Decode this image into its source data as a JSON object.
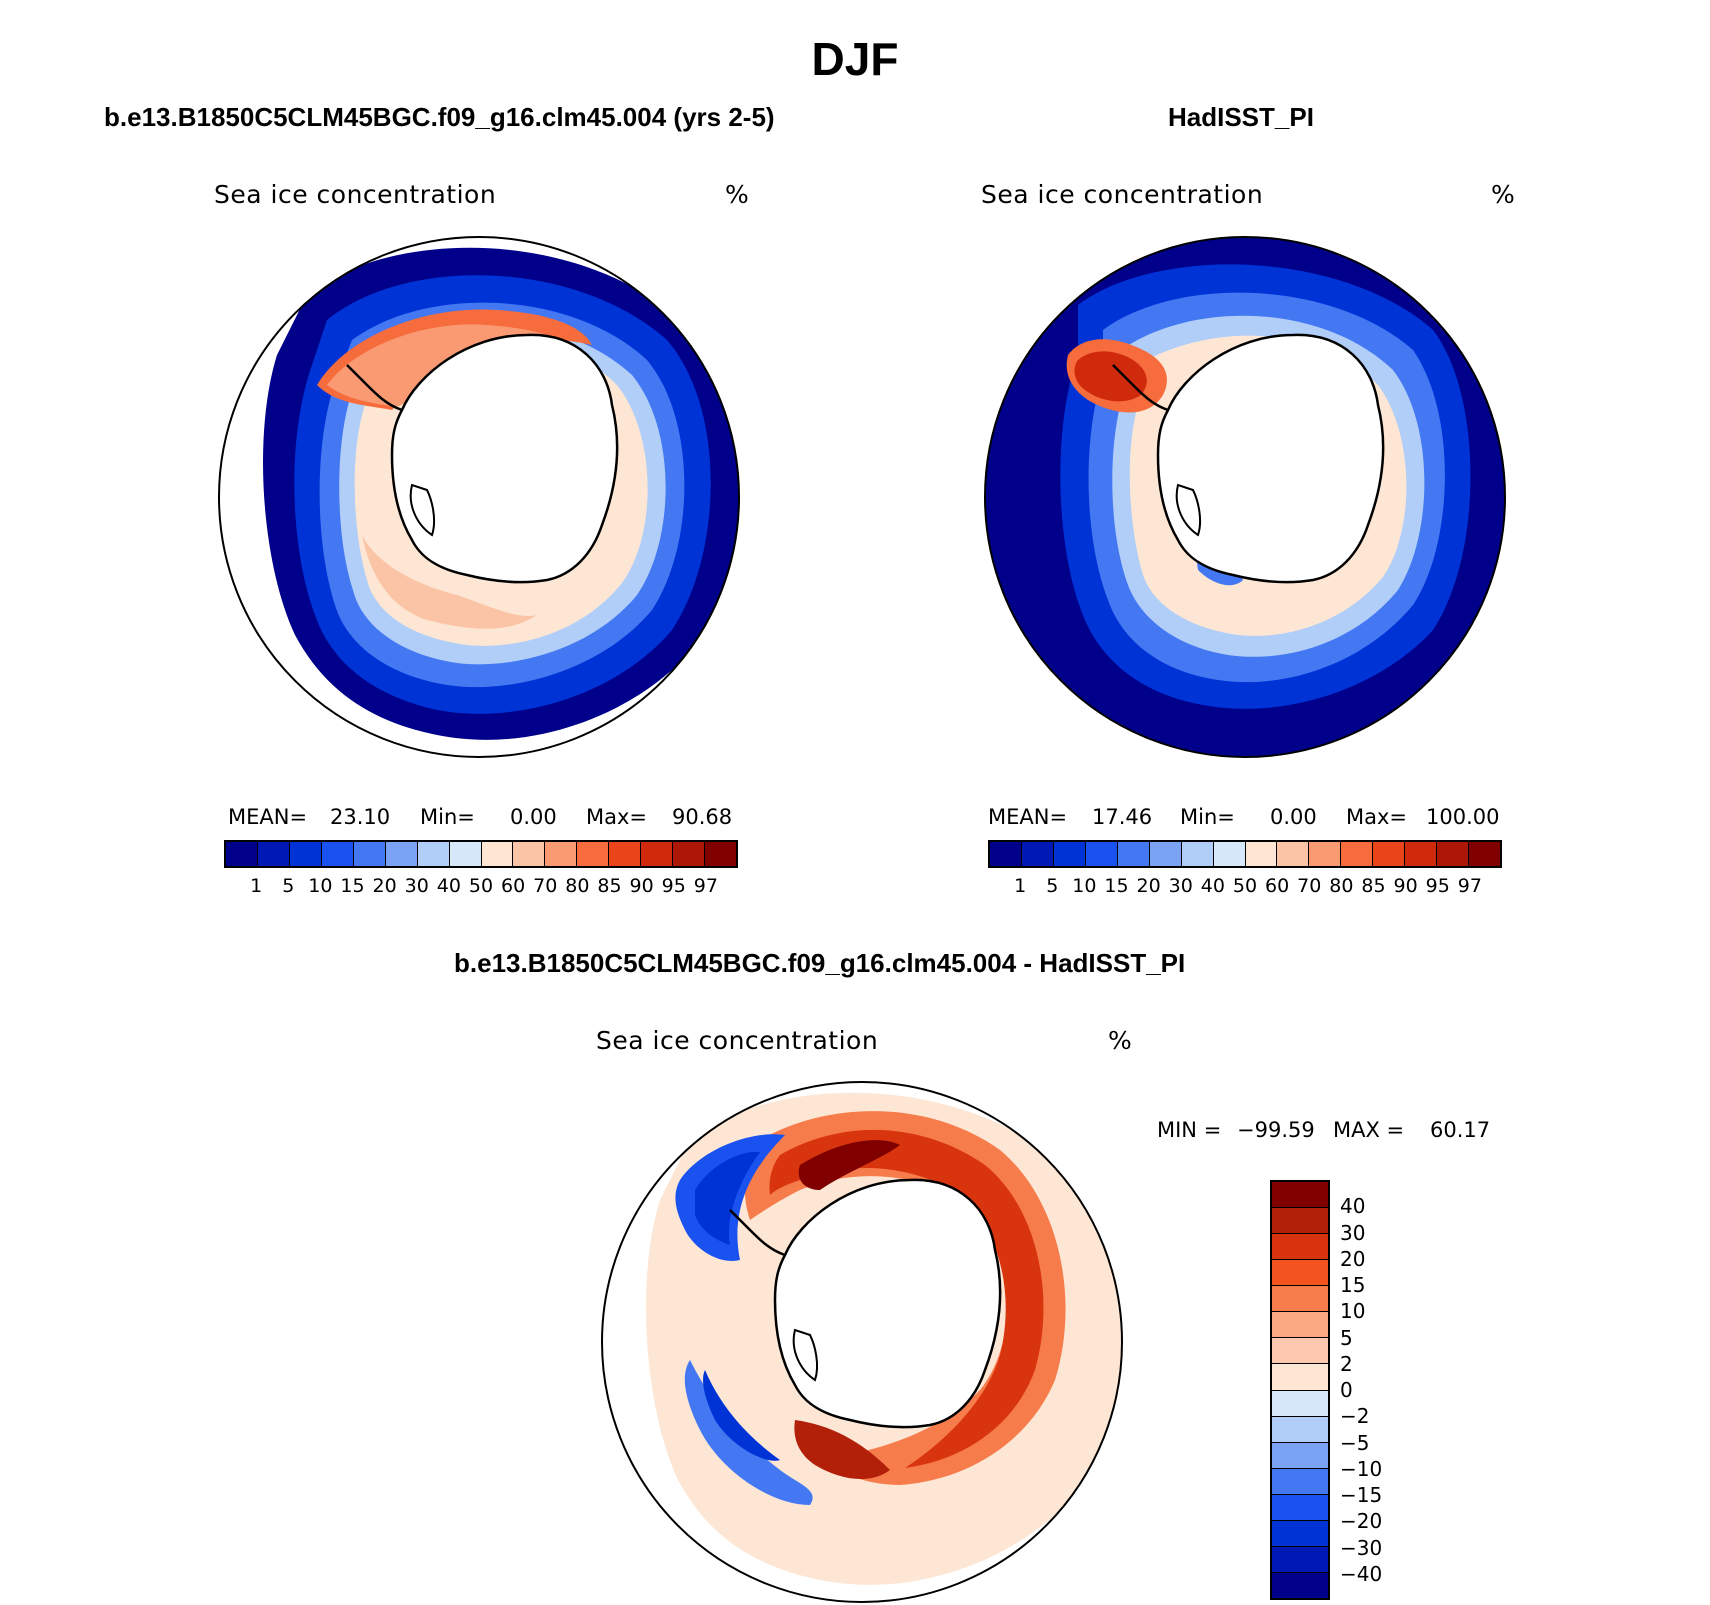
{
  "title": "DJF",
  "panels": [
    {
      "title": "b.e13.B1850C5CLM45BGC.f09_g16.clm45.004 (yrs 2-5)",
      "variable": "Sea ice concentration",
      "units": "%",
      "stats": {
        "mean_label": "MEAN=",
        "mean": "23.10",
        "min_label": "Min=",
        "min": "0.00",
        "max_label": "Max=",
        "max": "90.68"
      }
    },
    {
      "title": "HadISST_PI",
      "variable": "Sea ice concentration",
      "units": "%",
      "stats": {
        "mean_label": "MEAN=",
        "mean": "17.46",
        "min_label": "Min=",
        "min": "0.00",
        "max_label": "Max=",
        "max": "100.00"
      }
    },
    {
      "title": "b.e13.B1850C5CLM45BGC.f09_g16.clm45.004 - HadISST_PI",
      "variable": "Sea ice concentration",
      "units": "%",
      "stats": {
        "min_label": "MIN =",
        "min": "−99.59",
        "max_label": "MAX =",
        "max": "60.17"
      }
    }
  ],
  "colorbars": {
    "concentration": {
      "levels": [
        "1",
        "5",
        "10",
        "15",
        "20",
        "30",
        "40",
        "50",
        "60",
        "70",
        "80",
        "85",
        "90",
        "95",
        "97"
      ],
      "colors": [
        "#00008b",
        "#0018b4",
        "#0033d6",
        "#1a52f0",
        "#4478f2",
        "#7ba3f5",
        "#b0cef8",
        "#d8e8fb",
        "#fde6d4",
        "#fcc4a6",
        "#f99a72",
        "#f66c3d",
        "#e9441a",
        "#cf2a0c",
        "#ad1707",
        "#800000"
      ]
    },
    "difference": {
      "levels": [
        "40",
        "30",
        "20",
        "15",
        "10",
        "5",
        "2",
        "0",
        "−2",
        "−5",
        "−10",
        "−15",
        "−20",
        "−30",
        "−40"
      ],
      "colors": [
        "#800000",
        "#b3200a",
        "#d8350f",
        "#f2531f",
        "#f77c4c",
        "#f9a882",
        "#fcc9b0",
        "#fde6d4",
        "#d8e8fb",
        "#b0cef8",
        "#7ba3f5",
        "#4478f2",
        "#1a52f0",
        "#0033d6",
        "#0018b4",
        "#00008b"
      ]
    }
  },
  "map_colors": {
    "land": "#ffffff",
    "open_ocean_model": "#ffffff",
    "far_ocean": "#00008b",
    "coastline": "#000000"
  }
}
